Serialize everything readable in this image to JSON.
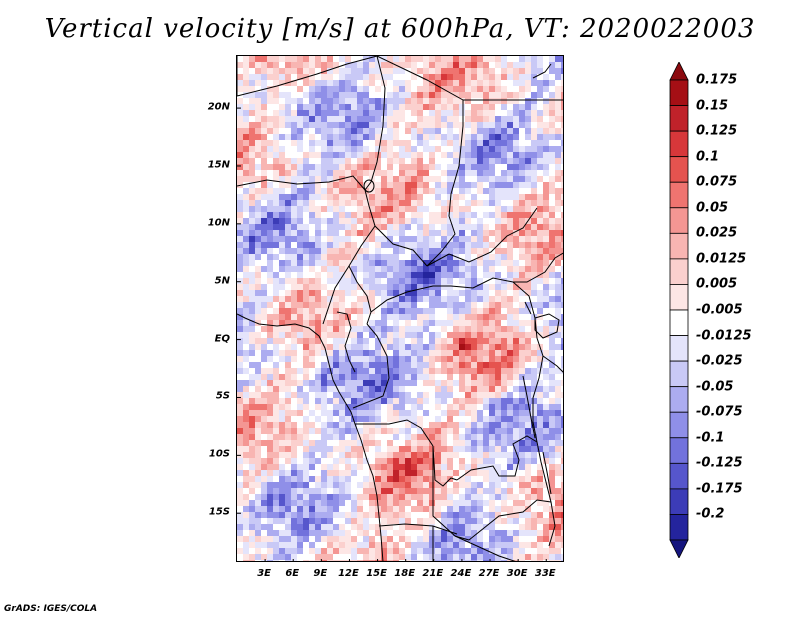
{
  "title": "Vertical velocity [m/s] at 600hPa, VT: 2020022003",
  "credit": "GrADS: IGES/COLA",
  "map": {
    "lon_range": [
      0,
      35
    ],
    "lat_range": [
      -19.3,
      24.5
    ],
    "lat_ticks": [
      {
        "value": 20,
        "label": "20N"
      },
      {
        "value": 15,
        "label": "15N"
      },
      {
        "value": 10,
        "label": "10N"
      },
      {
        "value": 5,
        "label": "5N"
      },
      {
        "value": 0,
        "label": "EQ"
      },
      {
        "value": -5,
        "label": "5S"
      },
      {
        "value": -10,
        "label": "10S"
      },
      {
        "value": -15,
        "label": "15S"
      }
    ],
    "lon_ticks": [
      {
        "value": 3,
        "label": "3E"
      },
      {
        "value": 6,
        "label": "6E"
      },
      {
        "value": 9,
        "label": "9E"
      },
      {
        "value": 12,
        "label": "12E"
      },
      {
        "value": 15,
        "label": "15E"
      },
      {
        "value": 18,
        "label": "18E"
      },
      {
        "value": 21,
        "label": "21E"
      },
      {
        "value": 24,
        "label": "24E"
      },
      {
        "value": 27,
        "label": "27E"
      },
      {
        "value": 30,
        "label": "30E"
      },
      {
        "value": 33,
        "label": "33E"
      }
    ]
  },
  "colorbar": {
    "levels": [
      {
        "label": "0.175",
        "color": "#a50f15"
      },
      {
        "label": "0.15",
        "color": "#c0222a"
      },
      {
        "label": "0.125",
        "color": "#d7373a"
      },
      {
        "label": "0.1",
        "color": "#e5534f"
      },
      {
        "label": "0.075",
        "color": "#ef7470"
      },
      {
        "label": "0.05",
        "color": "#f49693"
      },
      {
        "label": "0.025",
        "color": "#f8b5b2"
      },
      {
        "label": "0.0125",
        "color": "#fbd0ce"
      },
      {
        "label": "0.005",
        "color": "#fde6e5"
      },
      {
        "label": "-0.005",
        "color": "#ffffff"
      },
      {
        "label": "-0.0125",
        "color": "#e4e4fb"
      },
      {
        "label": "-0.025",
        "color": "#c9c9f6"
      },
      {
        "label": "-0.05",
        "color": "#acacf0"
      },
      {
        "label": "-0.075",
        "color": "#8f8fe8"
      },
      {
        "label": "-0.1",
        "color": "#7272dc"
      },
      {
        "label": "-0.125",
        "color": "#5656cc"
      },
      {
        "label": "-0.175",
        "color": "#3c3cb7"
      },
      {
        "label": "-0.2",
        "color": "#24249d"
      }
    ],
    "top_arrow_color": "#8b0a0f",
    "bottom_arrow_color": "#15157e"
  }
}
